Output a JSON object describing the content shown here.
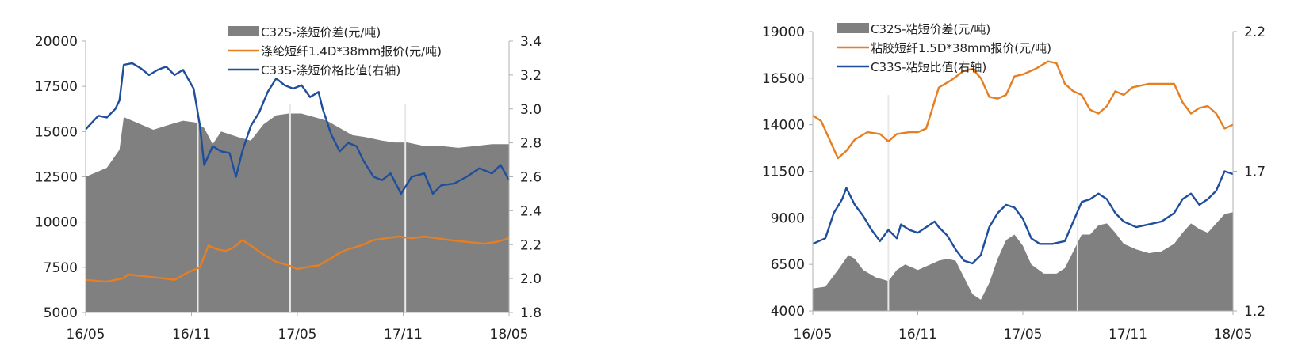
{
  "chart_data": [
    {
      "type": "area",
      "x_ticks": [
        "16/05",
        "16/11",
        "17/05",
        "17/11",
        "18/05"
      ],
      "y_left": {
        "min": 5000,
        "max": 20000,
        "ticks": [
          5000,
          7500,
          10000,
          12500,
          15000,
          17500,
          20000
        ]
      },
      "y_right": {
        "min": 1.8,
        "max": 3.4,
        "ticks": [
          1.8,
          2.0,
          2.2,
          2.4,
          2.6,
          2.8,
          3.0,
          3.2,
          3.4
        ]
      },
      "legend_position": "top-center",
      "series": [
        {
          "name": "C32S-涤短价差(元/吨)",
          "style": "area",
          "axis": "left",
          "color": "#808080",
          "points": [
            [
              0,
              12500
            ],
            [
              0.05,
              13000
            ],
            [
              0.08,
              14000
            ],
            [
              0.09,
              15800
            ],
            [
              0.12,
              15500
            ],
            [
              0.16,
              15100
            ],
            [
              0.2,
              15400
            ],
            [
              0.23,
              15600
            ],
            [
              0.26,
              15500
            ],
            [
              0.28,
              15200
            ],
            [
              0.3,
              14300
            ],
            [
              0.32,
              15000
            ],
            [
              0.36,
              14700
            ],
            [
              0.39,
              14500
            ],
            [
              0.42,
              15400
            ],
            [
              0.45,
              15900
            ],
            [
              0.48,
              16000
            ],
            [
              0.51,
              16000
            ],
            [
              0.54,
              15800
            ],
            [
              0.57,
              15600
            ],
            [
              0.6,
              15200
            ],
            [
              0.63,
              14800
            ],
            [
              0.66,
              14700
            ],
            [
              0.7,
              14500
            ],
            [
              0.73,
              14400
            ],
            [
              0.76,
              14400
            ],
            [
              0.8,
              14200
            ],
            [
              0.84,
              14200
            ],
            [
              0.88,
              14100
            ],
            [
              0.92,
              14200
            ],
            [
              0.96,
              14300
            ],
            [
              1.0,
              14300
            ]
          ]
        },
        {
          "name": "涤纶短纤1.4D*38mm报价(元/吨)",
          "style": "line",
          "axis": "left",
          "color": "#e67e22",
          "points": [
            [
              0,
              6800
            ],
            [
              0.05,
              6700
            ],
            [
              0.09,
              6900
            ],
            [
              0.1,
              7100
            ],
            [
              0.14,
              7000
            ],
            [
              0.18,
              6900
            ],
            [
              0.21,
              6800
            ],
            [
              0.24,
              7200
            ],
            [
              0.27,
              7500
            ],
            [
              0.29,
              8700
            ],
            [
              0.31,
              8500
            ],
            [
              0.33,
              8400
            ],
            [
              0.35,
              8600
            ],
            [
              0.37,
              9000
            ],
            [
              0.39,
              8700
            ],
            [
              0.42,
              8200
            ],
            [
              0.45,
              7800
            ],
            [
              0.48,
              7600
            ],
            [
              0.5,
              7400
            ],
            [
              0.52,
              7500
            ],
            [
              0.55,
              7600
            ],
            [
              0.58,
              8000
            ],
            [
              0.6,
              8300
            ],
            [
              0.62,
              8500
            ],
            [
              0.65,
              8700
            ],
            [
              0.68,
              9000
            ],
            [
              0.71,
              9100
            ],
            [
              0.74,
              9200
            ],
            [
              0.77,
              9100
            ],
            [
              0.8,
              9200
            ],
            [
              0.83,
              9100
            ],
            [
              0.86,
              9000
            ],
            [
              0.9,
              8900
            ],
            [
              0.94,
              8800
            ],
            [
              0.97,
              8900
            ],
            [
              1.0,
              9100
            ]
          ]
        },
        {
          "name": "C33S-涤短价格比值(右轴)",
          "style": "line",
          "axis": "right",
          "color": "#1f4e9c",
          "points": [
            [
              0,
              2.88
            ],
            [
              0.03,
              2.96
            ],
            [
              0.05,
              2.95
            ],
            [
              0.07,
              3.0
            ],
            [
              0.08,
              3.05
            ],
            [
              0.09,
              3.26
            ],
            [
              0.11,
              3.27
            ],
            [
              0.13,
              3.24
            ],
            [
              0.15,
              3.2
            ],
            [
              0.17,
              3.23
            ],
            [
              0.19,
              3.25
            ],
            [
              0.21,
              3.2
            ],
            [
              0.23,
              3.23
            ],
            [
              0.255,
              3.12
            ],
            [
              0.27,
              2.9
            ],
            [
              0.28,
              2.67
            ],
            [
              0.3,
              2.78
            ],
            [
              0.32,
              2.75
            ],
            [
              0.34,
              2.74
            ],
            [
              0.355,
              2.6
            ],
            [
              0.37,
              2.75
            ],
            [
              0.39,
              2.9
            ],
            [
              0.41,
              2.98
            ],
            [
              0.43,
              3.1
            ],
            [
              0.45,
              3.18
            ],
            [
              0.47,
              3.14
            ],
            [
              0.49,
              3.12
            ],
            [
              0.51,
              3.14
            ],
            [
              0.53,
              3.07
            ],
            [
              0.55,
              3.1
            ],
            [
              0.56,
              3.0
            ],
            [
              0.58,
              2.85
            ],
            [
              0.6,
              2.75
            ],
            [
              0.62,
              2.8
            ],
            [
              0.64,
              2.78
            ],
            [
              0.655,
              2.7
            ],
            [
              0.68,
              2.6
            ],
            [
              0.7,
              2.58
            ],
            [
              0.72,
              2.62
            ],
            [
              0.745,
              2.5
            ],
            [
              0.77,
              2.6
            ],
            [
              0.8,
              2.62
            ],
            [
              0.82,
              2.5
            ],
            [
              0.84,
              2.55
            ],
            [
              0.87,
              2.56
            ],
            [
              0.9,
              2.6
            ],
            [
              0.93,
              2.65
            ],
            [
              0.96,
              2.62
            ],
            [
              0.98,
              2.67
            ],
            [
              1.0,
              2.58
            ]
          ]
        }
      ]
    },
    {
      "type": "area",
      "x_ticks": [
        "16/05",
        "16/11",
        "17/05",
        "17/11",
        "18/05"
      ],
      "y_left": {
        "min": 4000,
        "max": 19000,
        "ticks": [
          4000,
          6500,
          9000,
          11500,
          14000,
          16500,
          19000
        ]
      },
      "y_right": {
        "min": 1.2,
        "max": 2.2,
        "ticks": [
          1.2,
          1.7,
          2.2
        ]
      },
      "legend_position": "top-left",
      "series": [
        {
          "name": "C32S-粘短价差(元/吨)",
          "style": "area",
          "axis": "left",
          "color": "#808080",
          "points": [
            [
              0,
              5200
            ],
            [
              0.03,
              5300
            ],
            [
              0.06,
              6200
            ],
            [
              0.085,
              7000
            ],
            [
              0.1,
              6800
            ],
            [
              0.12,
              6200
            ],
            [
              0.15,
              5800
            ],
            [
              0.18,
              5600
            ],
            [
              0.2,
              6200
            ],
            [
              0.22,
              6500
            ],
            [
              0.25,
              6200
            ],
            [
              0.28,
              6500
            ],
            [
              0.3,
              6700
            ],
            [
              0.32,
              6800
            ],
            [
              0.34,
              6700
            ],
            [
              0.36,
              5800
            ],
            [
              0.38,
              4900
            ],
            [
              0.4,
              4600
            ],
            [
              0.42,
              5500
            ],
            [
              0.44,
              6800
            ],
            [
              0.46,
              7800
            ],
            [
              0.48,
              8100
            ],
            [
              0.5,
              7500
            ],
            [
              0.52,
              6500
            ],
            [
              0.55,
              6000
            ],
            [
              0.58,
              6000
            ],
            [
              0.6,
              6300
            ],
            [
              0.62,
              7200
            ],
            [
              0.64,
              8100
            ],
            [
              0.66,
              8100
            ],
            [
              0.68,
              8600
            ],
            [
              0.7,
              8700
            ],
            [
              0.72,
              8200
            ],
            [
              0.74,
              7600
            ],
            [
              0.77,
              7300
            ],
            [
              0.8,
              7100
            ],
            [
              0.83,
              7200
            ],
            [
              0.86,
              7600
            ],
            [
              0.88,
              8200
            ],
            [
              0.9,
              8700
            ],
            [
              0.92,
              8400
            ],
            [
              0.94,
              8200
            ],
            [
              0.96,
              8700
            ],
            [
              0.98,
              9200
            ],
            [
              1.0,
              9300
            ]
          ]
        },
        {
          "name": "粘胶短纤1.5D*38mm报价(元/吨)",
          "style": "line",
          "axis": "left",
          "color": "#e67e22",
          "points": [
            [
              0,
              14500
            ],
            [
              0.02,
              14200
            ],
            [
              0.04,
              13200
            ],
            [
              0.06,
              12200
            ],
            [
              0.08,
              12600
            ],
            [
              0.1,
              13200
            ],
            [
              0.13,
              13600
            ],
            [
              0.16,
              13500
            ],
            [
              0.18,
              13100
            ],
            [
              0.2,
              13500
            ],
            [
              0.23,
              13600
            ],
            [
              0.25,
              13600
            ],
            [
              0.27,
              13800
            ],
            [
              0.3,
              16000
            ],
            [
              0.33,
              16400
            ],
            [
              0.36,
              16900
            ],
            [
              0.38,
              17000
            ],
            [
              0.4,
              16500
            ],
            [
              0.42,
              15500
            ],
            [
              0.44,
              15400
            ],
            [
              0.46,
              15600
            ],
            [
              0.48,
              16600
            ],
            [
              0.5,
              16700
            ],
            [
              0.53,
              17000
            ],
            [
              0.56,
              17400
            ],
            [
              0.58,
              17300
            ],
            [
              0.6,
              16200
            ],
            [
              0.62,
              15800
            ],
            [
              0.64,
              15600
            ],
            [
              0.66,
              14800
            ],
            [
              0.68,
              14600
            ],
            [
              0.7,
              15000
            ],
            [
              0.72,
              15800
            ],
            [
              0.74,
              15600
            ],
            [
              0.76,
              16000
            ],
            [
              0.78,
              16100
            ],
            [
              0.8,
              16200
            ],
            [
              0.83,
              16200
            ],
            [
              0.86,
              16200
            ],
            [
              0.88,
              15200
            ],
            [
              0.9,
              14600
            ],
            [
              0.92,
              14900
            ],
            [
              0.94,
              15000
            ],
            [
              0.96,
              14600
            ],
            [
              0.98,
              13800
            ],
            [
              1.0,
              14000
            ]
          ]
        },
        {
          "name": "C33S-粘短比值(右轴)",
          "style": "line",
          "axis": "right",
          "color": "#1f4e9c",
          "points": [
            [
              0,
              1.44
            ],
            [
              0.03,
              1.46
            ],
            [
              0.05,
              1.55
            ],
            [
              0.07,
              1.6
            ],
            [
              0.08,
              1.64
            ],
            [
              0.1,
              1.58
            ],
            [
              0.12,
              1.54
            ],
            [
              0.14,
              1.49
            ],
            [
              0.16,
              1.45
            ],
            [
              0.18,
              1.49
            ],
            [
              0.2,
              1.46
            ],
            [
              0.21,
              1.51
            ],
            [
              0.23,
              1.49
            ],
            [
              0.25,
              1.48
            ],
            [
              0.27,
              1.5
            ],
            [
              0.29,
              1.52
            ],
            [
              0.3,
              1.5
            ],
            [
              0.32,
              1.47
            ],
            [
              0.34,
              1.42
            ],
            [
              0.36,
              1.38
            ],
            [
              0.38,
              1.37
            ],
            [
              0.4,
              1.4
            ],
            [
              0.42,
              1.5
            ],
            [
              0.44,
              1.55
            ],
            [
              0.46,
              1.58
            ],
            [
              0.48,
              1.57
            ],
            [
              0.5,
              1.53
            ],
            [
              0.52,
              1.46
            ],
            [
              0.54,
              1.44
            ],
            [
              0.57,
              1.44
            ],
            [
              0.6,
              1.45
            ],
            [
              0.62,
              1.52
            ],
            [
              0.64,
              1.59
            ],
            [
              0.66,
              1.6
            ],
            [
              0.68,
              1.62
            ],
            [
              0.7,
              1.6
            ],
            [
              0.72,
              1.55
            ],
            [
              0.74,
              1.52
            ],
            [
              0.77,
              1.5
            ],
            [
              0.8,
              1.51
            ],
            [
              0.83,
              1.52
            ],
            [
              0.86,
              1.55
            ],
            [
              0.88,
              1.6
            ],
            [
              0.9,
              1.62
            ],
            [
              0.92,
              1.58
            ],
            [
              0.94,
              1.6
            ],
            [
              0.96,
              1.63
            ],
            [
              0.98,
              1.7
            ],
            [
              1.0,
              1.69
            ]
          ]
        }
      ]
    }
  ]
}
